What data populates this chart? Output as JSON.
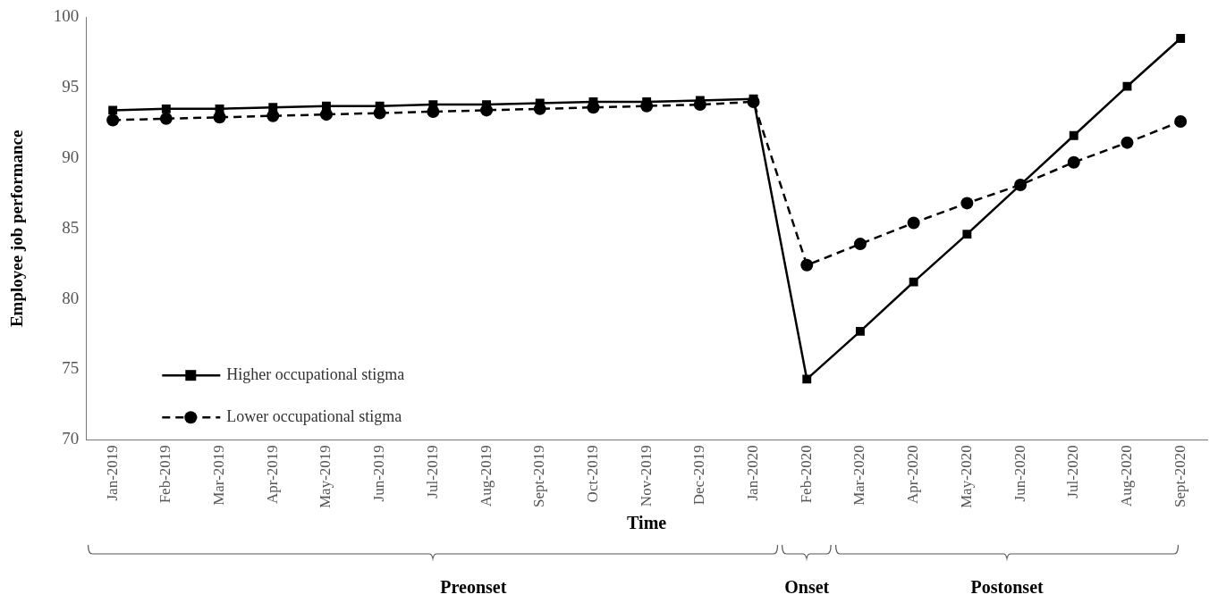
{
  "chart_data": {
    "type": "line",
    "xlabel": "Time",
    "ylabel": "Employee job performance",
    "categories": [
      "Jan-2019",
      "Feb-2019",
      "Mar-2019",
      "Apr-2019",
      "May-2019",
      "Jun-2019",
      "Jul-2019",
      "Aug-2019",
      "Sept-2019",
      "Oct-2019",
      "Nov-2019",
      "Dec-2019",
      "Jan-2020",
      "Feb-2020",
      "Mar-2020",
      "Apr-2020",
      "May-2020",
      "Jun-2020",
      "Jul-2020",
      "Aug-2020",
      "Sept-2020"
    ],
    "series": [
      {
        "name": "Higher occupational stigma",
        "color": "#000000",
        "marker": "square",
        "line_style": "solid",
        "values": [
          93.4,
          93.5,
          93.5,
          93.6,
          93.7,
          93.7,
          93.8,
          93.8,
          93.9,
          94.0,
          94.0,
          94.1,
          94.2,
          74.3,
          77.7,
          81.2,
          84.6,
          88.1,
          91.6,
          95.1,
          98.5
        ]
      },
      {
        "name": "Lower occupational stigma",
        "color": "#000000",
        "marker": "circle",
        "line_style": "dashed",
        "values": [
          92.7,
          92.8,
          92.9,
          93.0,
          93.1,
          93.2,
          93.3,
          93.4,
          93.5,
          93.6,
          93.7,
          93.8,
          94.0,
          82.4,
          83.9,
          85.4,
          86.8,
          88.1,
          89.7,
          91.1,
          92.6
        ]
      }
    ],
    "ylim": [
      70,
      100
    ],
    "yticks": [
      70,
      75,
      80,
      85,
      90,
      95,
      100
    ],
    "grid": false,
    "legend": "bottom left",
    "annotations": [
      "Preonset",
      "Onset",
      "Postonset"
    ]
  }
}
